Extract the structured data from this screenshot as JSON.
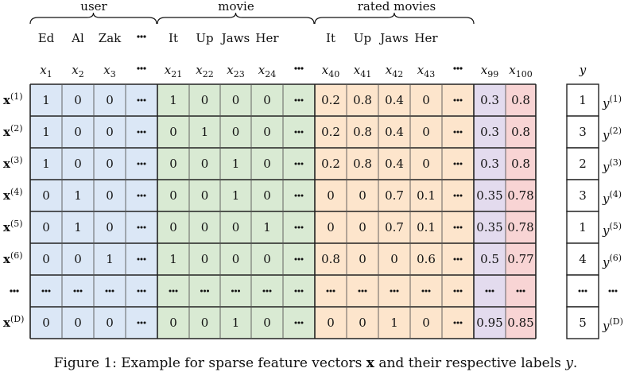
{
  "groups": [
    {
      "label": "user"
    },
    {
      "label": "movie"
    },
    {
      "label": "rated movies"
    }
  ],
  "items": {
    "user": [
      "Ed",
      "Al",
      "Zak",
      "..."
    ],
    "movie": [
      "It",
      "Up",
      "Jaws",
      "Her"
    ],
    "rated": [
      "It",
      "Up",
      "Jaws",
      "Her"
    ]
  },
  "col_labels": [
    {
      "base": "x",
      "sub": "1"
    },
    {
      "base": "x",
      "sub": "2"
    },
    {
      "base": "x",
      "sub": "3"
    },
    {
      "base": "...",
      "sub": ""
    },
    {
      "base": "x",
      "sub": "21"
    },
    {
      "base": "x",
      "sub": "22"
    },
    {
      "base": "x",
      "sub": "23"
    },
    {
      "base": "x",
      "sub": "24"
    },
    {
      "base": "...",
      "sub": ""
    },
    {
      "base": "x",
      "sub": "40"
    },
    {
      "base": "x",
      "sub": "41"
    },
    {
      "base": "x",
      "sub": "42"
    },
    {
      "base": "x",
      "sub": "43"
    },
    {
      "base": "...",
      "sub": ""
    },
    {
      "base": "x",
      "sub": "99"
    },
    {
      "base": "x",
      "sub": "100"
    }
  ],
  "y_header": "y",
  "row_labels": [
    {
      "base": "x",
      "sup": "(1)"
    },
    {
      "base": "x",
      "sup": "(2)"
    },
    {
      "base": "x",
      "sup": "(3)"
    },
    {
      "base": "x",
      "sup": "(4)"
    },
    {
      "base": "x",
      "sup": "(5)"
    },
    {
      "base": "x",
      "sup": "(6)"
    },
    {
      "base": "...",
      "sup": ""
    },
    {
      "base": "x",
      "sup": "(D)"
    }
  ],
  "matrix": [
    [
      "1",
      "0",
      "0",
      "...",
      "1",
      "0",
      "0",
      "0",
      "...",
      "0.2",
      "0.8",
      "0.4",
      "0",
      "...",
      "0.3",
      "0.8"
    ],
    [
      "1",
      "0",
      "0",
      "...",
      "0",
      "1",
      "0",
      "0",
      "...",
      "0.2",
      "0.8",
      "0.4",
      "0",
      "...",
      "0.3",
      "0.8"
    ],
    [
      "1",
      "0",
      "0",
      "...",
      "0",
      "0",
      "1",
      "0",
      "...",
      "0.2",
      "0.8",
      "0.4",
      "0",
      "...",
      "0.3",
      "0.8"
    ],
    [
      "0",
      "1",
      "0",
      "...",
      "0",
      "0",
      "1",
      "0",
      "...",
      "0",
      "0",
      "0.7",
      "0.1",
      "...",
      "0.35",
      "0.78"
    ],
    [
      "0",
      "1",
      "0",
      "...",
      "0",
      "0",
      "0",
      "1",
      "...",
      "0",
      "0",
      "0.7",
      "0.1",
      "...",
      "0.35",
      "0.78"
    ],
    [
      "0",
      "0",
      "1",
      "...",
      "1",
      "0",
      "0",
      "0",
      "...",
      "0.8",
      "0",
      "0",
      "0.6",
      "...",
      "0.5",
      "0.77"
    ],
    [
      "...",
      "...",
      "...",
      "...",
      "...",
      "...",
      "...",
      "...",
      "...",
      "...",
      "...",
      "...",
      "...",
      "...",
      "...",
      "..."
    ],
    [
      "0",
      "0",
      "0",
      "...",
      "0",
      "0",
      "1",
      "0",
      "...",
      "0",
      "0",
      "1",
      "0",
      "...",
      "0.95",
      "0.85"
    ]
  ],
  "targets": [
    "1",
    "3",
    "2",
    "3",
    "1",
    "4",
    "...",
    "5"
  ],
  "target_labels": [
    {
      "base": "y",
      "sup": "(1)"
    },
    {
      "base": "y",
      "sup": "(2)"
    },
    {
      "base": "y",
      "sup": "(3)"
    },
    {
      "base": "y",
      "sup": "(4)"
    },
    {
      "base": "y",
      "sup": "(5)"
    },
    {
      "base": "y",
      "sup": "(6)"
    },
    {
      "base": "...",
      "sup": ""
    },
    {
      "base": "y",
      "sup": "(D)"
    }
  ],
  "caption": {
    "prefix": "Figure 1: Example for sparse feature vectors ",
    "bold": "x",
    "middle": " and their respective labels ",
    "italic": "y",
    "suffix": "."
  },
  "colors": {
    "user": "#dbe7f6",
    "movie": "#d9ead3",
    "rated": "#fde5cc",
    "time": "#e3dbee",
    "last": "#f8d4d4"
  }
}
